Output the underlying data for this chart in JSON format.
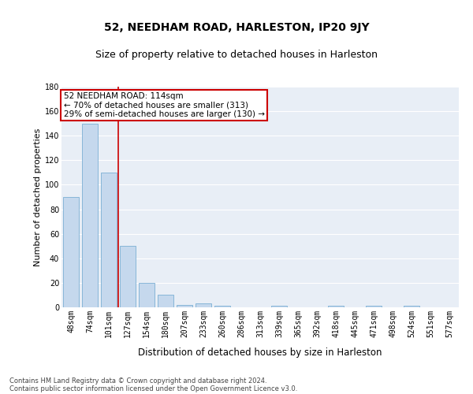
{
  "title": "52, NEEDHAM ROAD, HARLESTON, IP20 9JY",
  "subtitle": "Size of property relative to detached houses in Harleston",
  "xlabel": "Distribution of detached houses by size in Harleston",
  "ylabel": "Number of detached properties",
  "categories": [
    "48sqm",
    "74sqm",
    "101sqm",
    "127sqm",
    "154sqm",
    "180sqm",
    "207sqm",
    "233sqm",
    "260sqm",
    "286sqm",
    "313sqm",
    "339sqm",
    "365sqm",
    "392sqm",
    "418sqm",
    "445sqm",
    "471sqm",
    "498sqm",
    "524sqm",
    "551sqm",
    "577sqm"
  ],
  "values": [
    90,
    150,
    110,
    50,
    20,
    10,
    2,
    3,
    1,
    0,
    0,
    1,
    0,
    0,
    1,
    0,
    1,
    0,
    1,
    0,
    0
  ],
  "bar_color": "#c5d8ed",
  "bar_edge_color": "#7bafd4",
  "background_color": "#e8eef6",
  "grid_color": "#ffffff",
  "vline_color": "#cc0000",
  "vline_pos": 2.5,
  "annotation_line1": "52 NEEDHAM ROAD: 114sqm",
  "annotation_line2": "← 70% of detached houses are smaller (313)",
  "annotation_line3": "29% of semi-detached houses are larger (130) →",
  "annotation_box_color": "#cc0000",
  "ylim": [
    0,
    180
  ],
  "yticks": [
    0,
    20,
    40,
    60,
    80,
    100,
    120,
    140,
    160,
    180
  ],
  "footer_line1": "Contains HM Land Registry data © Crown copyright and database right 2024.",
  "footer_line2": "Contains public sector information licensed under the Open Government Licence v3.0.",
  "title_fontsize": 10,
  "subtitle_fontsize": 9,
  "tick_fontsize": 7,
  "ylabel_fontsize": 8,
  "xlabel_fontsize": 8.5,
  "annotation_fontsize": 7.5,
  "footer_fontsize": 6
}
